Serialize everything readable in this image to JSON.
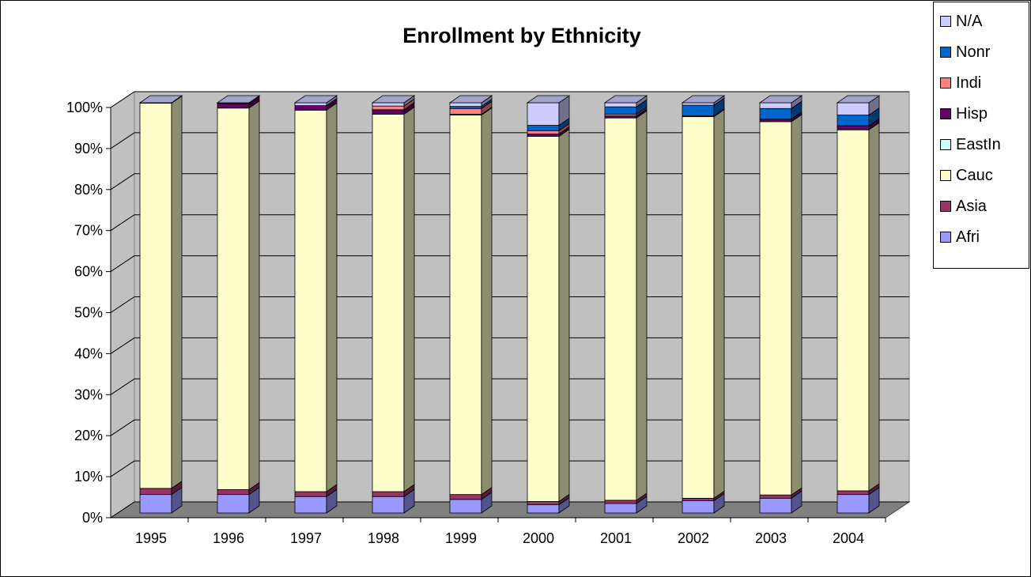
{
  "chart_data": {
    "type": "bar",
    "stacked": "percent",
    "three_d": true,
    "title": "Enrollment by Ethnicity",
    "xlabel": "",
    "ylabel": "",
    "categories": [
      "1995",
      "1996",
      "1997",
      "1998",
      "1999",
      "2000",
      "2001",
      "2002",
      "2003",
      "2004"
    ],
    "y_ticks": [
      "0%",
      "10%",
      "20%",
      "30%",
      "40%",
      "50%",
      "60%",
      "70%",
      "80%",
      "90%",
      "100%"
    ],
    "ylim": [
      0,
      100
    ],
    "grid": true,
    "legend_position": "right",
    "series": [
      {
        "name": "Afri",
        "color": "#9999ff",
        "values": [
          4.5,
          4.5,
          4.0,
          4.0,
          3.3,
          2.0,
          2.3,
          3.0,
          3.6,
          4.5
        ]
      },
      {
        "name": "Asia",
        "color": "#993366",
        "values": [
          1.5,
          1.2,
          1.2,
          1.2,
          1.2,
          0.8,
          0.8,
          0.6,
          0.8,
          0.9
        ]
      },
      {
        "name": "Cauc",
        "color": "#ffffcc",
        "values": [
          93.9,
          93.0,
          93.0,
          92.0,
          92.5,
          89.0,
          93.2,
          93.0,
          91.0,
          88.0
        ]
      },
      {
        "name": "EastIn",
        "color": "#ccffff",
        "values": [
          0,
          0,
          0,
          0,
          0,
          0,
          0,
          0,
          0,
          0
        ]
      },
      {
        "name": "Hisp",
        "color": "#660066",
        "values": [
          0,
          1.1,
          1.1,
          1.1,
          0.2,
          0.6,
          0.5,
          0.2,
          0.6,
          1.0
        ]
      },
      {
        "name": "Indi",
        "color": "#ff8080",
        "values": [
          0,
          0,
          0,
          0.9,
          1.4,
          0.8,
          0.4,
          0,
          0,
          0
        ]
      },
      {
        "name": "Nonr",
        "color": "#0066cc",
        "values": [
          0,
          0.1,
          0,
          0,
          0.5,
          1.3,
          1.8,
          2.6,
          2.6,
          2.6
        ]
      },
      {
        "name": "N/A",
        "color": "#ccccff",
        "values": [
          0.1,
          0.1,
          0.7,
          0.8,
          0.9,
          5.5,
          1.0,
          0.6,
          1.4,
          3.0
        ]
      }
    ]
  }
}
